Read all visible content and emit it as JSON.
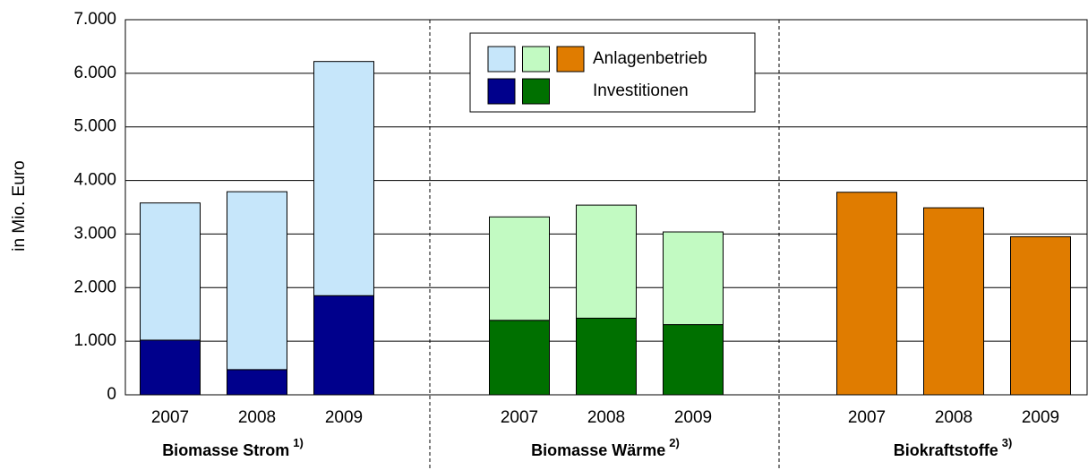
{
  "chart_data": {
    "type": "stacked-bar",
    "ylabel": "in Mio. Euro",
    "categories": [
      "2007",
      "2008",
      "2009",
      "2007",
      "2008",
      "2009",
      "2007",
      "2008",
      "2009"
    ],
    "groups": [
      {
        "name": "Biomasse Strom",
        "note": "1)"
      },
      {
        "name": "Biomasse Wärme",
        "note": "2)"
      },
      {
        "name": "Biokraftstoffe",
        "note": "3)"
      }
    ],
    "series": [
      {
        "name": "Investitionen",
        "colors": [
          "#00008c",
          "#007000",
          "#e07c00"
        ],
        "values": [
          1020,
          470,
          1850,
          1390,
          1430,
          1310,
          null,
          null,
          null
        ]
      },
      {
        "name": "Anlagenbetrieb",
        "colors": [
          "#c6e6fa",
          "#c2fac2",
          "#e07c00"
        ],
        "values": [
          2560,
          3320,
          4370,
          1930,
          2110,
          1730,
          3780,
          3490,
          2950
        ]
      }
    ],
    "ylim": [
      0,
      7000
    ],
    "yticks": [
      0,
      {
        "value": 1000,
        "label": "1.000"
      },
      {
        "value": 2000,
        "label": "2.000"
      },
      {
        "value": 3000,
        "label": "3.000"
      },
      {
        "value": 4000,
        "label": "4.000"
      },
      {
        "value": 5000,
        "label": "5.000"
      },
      {
        "value": 6000,
        "label": "6.000"
      },
      {
        "value": 7000,
        "label": "7.000"
      }
    ],
    "grid": true
  }
}
